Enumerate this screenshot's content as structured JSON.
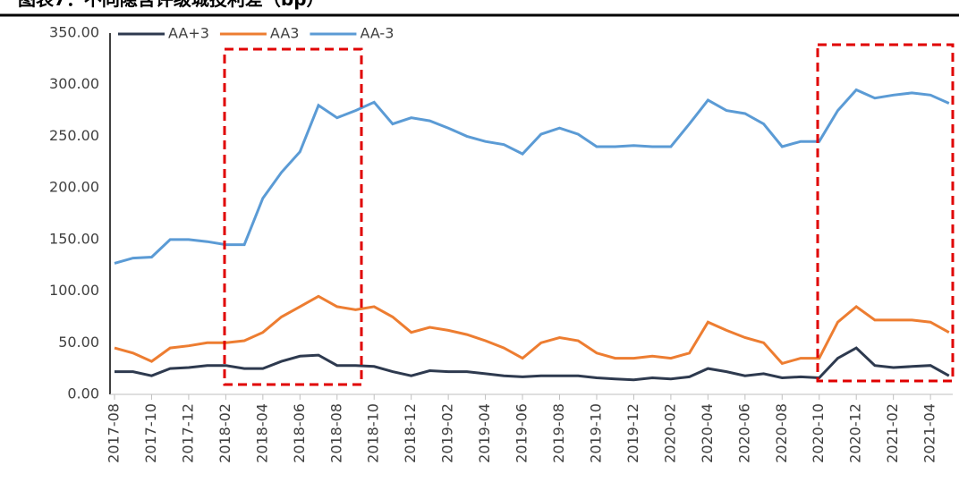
{
  "chart_data": {
    "type": "line",
    "title": "图表7：不同隐含评级城投利差（bp）",
    "categories": [
      "2017-08",
      null,
      "2017-10",
      null,
      "2017-12",
      null,
      "2018-02",
      null,
      "2018-04",
      null,
      "2018-06",
      null,
      "2018-08",
      null,
      "2018-10",
      null,
      "2018-12",
      null,
      "2019-02",
      null,
      "2019-04",
      null,
      "2019-06",
      null,
      "2019-08",
      null,
      "2019-10",
      null,
      "2019-12",
      null,
      "2020-02",
      null,
      "2020-04",
      null,
      "2020-06",
      null,
      "2020-08",
      null,
      "2020-10",
      null,
      "2020-12",
      null,
      "2021-02",
      null,
      "2021-04",
      null
    ],
    "series": [
      {
        "name": "AA+3",
        "color": "#2e3a4f",
        "values": [
          22,
          22,
          18,
          25,
          26,
          28,
          28,
          25,
          25,
          32,
          37,
          38,
          28,
          28,
          27,
          22,
          18,
          23,
          22,
          22,
          20,
          18,
          17,
          18,
          18,
          18,
          16,
          15,
          14,
          16,
          15,
          17,
          25,
          22,
          18,
          20,
          16,
          17,
          16,
          35,
          45,
          28,
          26,
          27,
          28,
          18
        ]
      },
      {
        "name": "AA3",
        "color": "#ed7d31",
        "values": [
          45,
          40,
          32,
          45,
          47,
          50,
          50,
          52,
          60,
          75,
          85,
          95,
          85,
          82,
          85,
          75,
          60,
          65,
          62,
          58,
          52,
          45,
          35,
          50,
          55,
          52,
          40,
          35,
          35,
          37,
          35,
          40,
          70,
          62,
          55,
          50,
          30,
          35,
          35,
          70,
          85,
          72,
          72,
          72,
          70,
          60
        ]
      },
      {
        "name": "AA-3",
        "color": "#5b9bd5",
        "values": [
          127,
          132,
          133,
          150,
          150,
          148,
          145,
          145,
          190,
          215,
          235,
          280,
          268,
          275,
          283,
          262,
          268,
          265,
          258,
          250,
          245,
          242,
          233,
          252,
          258,
          252,
          240,
          240,
          241,
          240,
          240,
          262,
          285,
          275,
          272,
          262,
          240,
          245,
          245,
          275,
          295,
          287,
          290,
          292,
          290,
          282
        ]
      }
    ],
    "ylim": [
      0,
      350
    ],
    "yticks": [
      {
        "value": 0,
        "label": "0.00"
      },
      {
        "value": 50,
        "label": "50.00"
      },
      {
        "value": 100,
        "label": "100.00"
      },
      {
        "value": 150,
        "label": "150.00"
      },
      {
        "value": 200,
        "label": "200.00"
      },
      {
        "value": 250,
        "label": "250.00"
      },
      {
        "value": 300,
        "label": "300.00"
      },
      {
        "value": 350,
        "label": "350.00"
      }
    ]
  }
}
